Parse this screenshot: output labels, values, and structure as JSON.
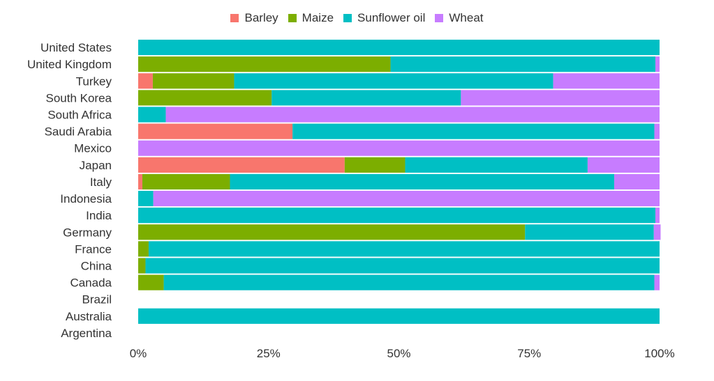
{
  "chart_data": {
    "type": "bar",
    "orientation": "horizontal",
    "stacked": "percent",
    "categories": [
      "United States",
      "United Kingdom",
      "Turkey",
      "South Korea",
      "South Africa",
      "Saudi Arabia",
      "Mexico",
      "Japan",
      "Italy",
      "Indonesia",
      "India",
      "Germany",
      "France",
      "China",
      "Canada",
      "Brazil",
      "Australia",
      "Argentina"
    ],
    "series": [
      {
        "name": "Barley",
        "color": "#F8766D",
        "values": [
          0,
          0,
          0.028,
          0,
          0,
          0.296,
          0,
          0.396,
          0.008,
          0,
          0,
          0,
          0,
          0,
          0,
          0,
          0,
          0
        ]
      },
      {
        "name": "Maize",
        "color": "#7CAE00",
        "values": [
          0,
          0.484,
          0.156,
          0.256,
          0,
          0,
          0,
          0.116,
          0.168,
          0,
          0,
          0.742,
          0.02,
          0.014,
          0.049,
          0,
          0,
          0
        ]
      },
      {
        "name": "Sunflower oil",
        "color": "#00BFC4",
        "values": [
          1.0,
          0.508,
          0.612,
          0.363,
          0.053,
          0.694,
          0,
          0.35,
          0.737,
          0.029,
          0.992,
          0.247,
          0.98,
          0.986,
          0.941,
          0,
          1.0,
          0
        ]
      },
      {
        "name": "Wheat",
        "color": "#C77CFF",
        "values": [
          0,
          0.008,
          0.204,
          0.381,
          0.947,
          0.01,
          1.0,
          0.138,
          0.087,
          0.971,
          0.008,
          0.013,
          0,
          0,
          0.01,
          0,
          0,
          0
        ]
      }
    ],
    "x_ticks": [
      "0%",
      "25%",
      "50%",
      "75%",
      "100%"
    ],
    "xlim": [
      0,
      1
    ],
    "legend_position": "top",
    "grid": false
  }
}
